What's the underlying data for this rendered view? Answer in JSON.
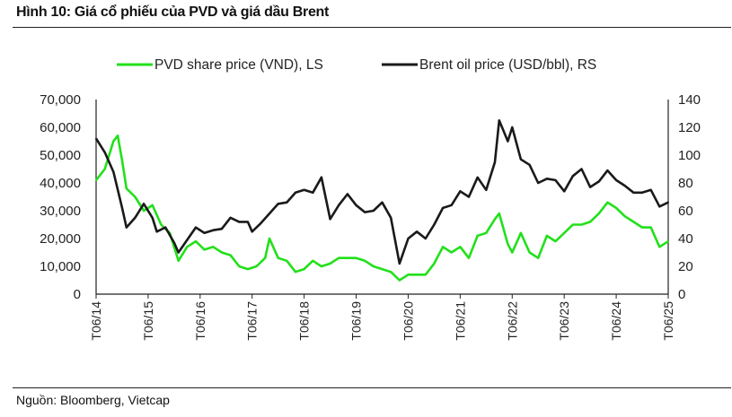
{
  "title": "Hình 10: Giá cổ phiếu của PVD và giá dầu Brent",
  "source": "Nguồn: Bloomberg, Vietcap",
  "chart_data": {
    "type": "line",
    "title": "Hình 10: Giá cổ phiếu của PVD và giá dầu Brent",
    "legend_position": "top",
    "x_ticks": [
      "T06/14",
      "T06/15",
      "T06/16",
      "T06/17",
      "T06/18",
      "T06/19",
      "T06/20",
      "T06/21",
      "T06/22",
      "T06/23",
      "T06/24",
      "T06/25"
    ],
    "x_range": [
      "2014-06",
      "2025-06"
    ],
    "y_left": {
      "ylim": [
        0,
        70000
      ],
      "ticks": [
        "0",
        "10,000",
        "20,000",
        "30,000",
        "40,000",
        "50,000",
        "60,000",
        "70,000"
      ],
      "tick_values": [
        0,
        10000,
        20000,
        30000,
        40000,
        50000,
        60000,
        70000
      ]
    },
    "y_right": {
      "ylim": [
        0,
        140
      ],
      "ticks": [
        "0",
        "20",
        "40",
        "60",
        "80",
        "100",
        "120",
        "140"
      ],
      "tick_values": [
        0,
        20,
        40,
        60,
        80,
        100,
        120,
        140
      ]
    },
    "series": [
      {
        "name": "PVD share price (VND), LS",
        "axis": "left",
        "color": "#22e01a",
        "points": [
          [
            "2014-06",
            41000
          ],
          [
            "2014-08",
            45000
          ],
          [
            "2014-10",
            55000
          ],
          [
            "2014-11",
            57000
          ],
          [
            "2014-12",
            48000
          ],
          [
            "2015-01",
            38000
          ],
          [
            "2015-03",
            35000
          ],
          [
            "2015-05",
            30000
          ],
          [
            "2015-07",
            32000
          ],
          [
            "2015-09",
            25000
          ],
          [
            "2015-11",
            22000
          ],
          [
            "2015-12",
            17000
          ],
          [
            "2016-01",
            12000
          ],
          [
            "2016-03",
            17000
          ],
          [
            "2016-05",
            19000
          ],
          [
            "2016-07",
            16000
          ],
          [
            "2016-09",
            17000
          ],
          [
            "2016-11",
            15000
          ],
          [
            "2017-01",
            14000
          ],
          [
            "2017-03",
            10000
          ],
          [
            "2017-05",
            9000
          ],
          [
            "2017-07",
            10000
          ],
          [
            "2017-09",
            13000
          ],
          [
            "2017-10",
            20000
          ],
          [
            "2017-12",
            13000
          ],
          [
            "2018-02",
            12000
          ],
          [
            "2018-04",
            8000
          ],
          [
            "2018-06",
            9000
          ],
          [
            "2018-08",
            12000
          ],
          [
            "2018-10",
            10000
          ],
          [
            "2018-12",
            11000
          ],
          [
            "2019-02",
            13000
          ],
          [
            "2019-04",
            13000
          ],
          [
            "2019-06",
            13000
          ],
          [
            "2019-08",
            12000
          ],
          [
            "2019-10",
            10000
          ],
          [
            "2019-12",
            9000
          ],
          [
            "2020-02",
            8000
          ],
          [
            "2020-04",
            5000
          ],
          [
            "2020-06",
            7000
          ],
          [
            "2020-08",
            7000
          ],
          [
            "2020-10",
            7000
          ],
          [
            "2020-12",
            11000
          ],
          [
            "2021-02",
            17000
          ],
          [
            "2021-04",
            15000
          ],
          [
            "2021-06",
            17000
          ],
          [
            "2021-08",
            13000
          ],
          [
            "2021-10",
            21000
          ],
          [
            "2021-12",
            22000
          ],
          [
            "2022-02",
            27000
          ],
          [
            "2022-03",
            29000
          ],
          [
            "2022-05",
            18000
          ],
          [
            "2022-06",
            15000
          ],
          [
            "2022-08",
            22000
          ],
          [
            "2022-10",
            15000
          ],
          [
            "2022-12",
            13000
          ],
          [
            "2023-02",
            21000
          ],
          [
            "2023-04",
            19000
          ],
          [
            "2023-06",
            22000
          ],
          [
            "2023-08",
            25000
          ],
          [
            "2023-10",
            25000
          ],
          [
            "2023-12",
            26000
          ],
          [
            "2024-02",
            29000
          ],
          [
            "2024-04",
            33000
          ],
          [
            "2024-06",
            31000
          ],
          [
            "2024-08",
            28000
          ],
          [
            "2024-10",
            26000
          ],
          [
            "2024-12",
            24000
          ],
          [
            "2025-02",
            24000
          ],
          [
            "2025-04",
            17000
          ],
          [
            "2025-06",
            19000
          ]
        ]
      },
      {
        "name": "Brent oil price (USD/bbl), RS",
        "axis": "right",
        "color": "#1a1a1a",
        "points": [
          [
            "2014-06",
            112
          ],
          [
            "2014-08",
            102
          ],
          [
            "2014-10",
            88
          ],
          [
            "2014-12",
            62
          ],
          [
            "2015-01",
            48
          ],
          [
            "2015-03",
            55
          ],
          [
            "2015-05",
            65
          ],
          [
            "2015-07",
            55
          ],
          [
            "2015-08",
            45
          ],
          [
            "2015-10",
            48
          ],
          [
            "2015-12",
            37
          ],
          [
            "2016-01",
            30
          ],
          [
            "2016-03",
            39
          ],
          [
            "2016-05",
            48
          ],
          [
            "2016-07",
            44
          ],
          [
            "2016-09",
            46
          ],
          [
            "2016-11",
            47
          ],
          [
            "2017-01",
            55
          ],
          [
            "2017-03",
            52
          ],
          [
            "2017-05",
            52
          ],
          [
            "2017-06",
            45
          ],
          [
            "2017-08",
            51
          ],
          [
            "2017-10",
            58
          ],
          [
            "2017-12",
            65
          ],
          [
            "2018-02",
            66
          ],
          [
            "2018-04",
            73
          ],
          [
            "2018-06",
            75
          ],
          [
            "2018-08",
            73
          ],
          [
            "2018-10",
            84
          ],
          [
            "2018-12",
            54
          ],
          [
            "2019-02",
            64
          ],
          [
            "2019-04",
            72
          ],
          [
            "2019-06",
            64
          ],
          [
            "2019-08",
            59
          ],
          [
            "2019-10",
            60
          ],
          [
            "2019-12",
            66
          ],
          [
            "2020-02",
            55
          ],
          [
            "2020-04",
            22
          ],
          [
            "2020-06",
            40
          ],
          [
            "2020-08",
            45
          ],
          [
            "2020-10",
            40
          ],
          [
            "2020-12",
            50
          ],
          [
            "2021-02",
            62
          ],
          [
            "2021-04",
            64
          ],
          [
            "2021-06",
            74
          ],
          [
            "2021-08",
            70
          ],
          [
            "2021-10",
            84
          ],
          [
            "2021-12",
            75
          ],
          [
            "2022-02",
            95
          ],
          [
            "2022-03",
            125
          ],
          [
            "2022-05",
            110
          ],
          [
            "2022-06",
            120
          ],
          [
            "2022-08",
            97
          ],
          [
            "2022-10",
            93
          ],
          [
            "2022-12",
            80
          ],
          [
            "2023-02",
            83
          ],
          [
            "2023-04",
            82
          ],
          [
            "2023-06",
            74
          ],
          [
            "2023-08",
            85
          ],
          [
            "2023-10",
            90
          ],
          [
            "2023-12",
            77
          ],
          [
            "2024-02",
            81
          ],
          [
            "2024-04",
            89
          ],
          [
            "2024-06",
            82
          ],
          [
            "2024-08",
            78
          ],
          [
            "2024-10",
            73
          ],
          [
            "2024-12",
            73
          ],
          [
            "2025-02",
            75
          ],
          [
            "2025-04",
            63
          ],
          [
            "2025-06",
            66
          ]
        ]
      }
    ]
  }
}
